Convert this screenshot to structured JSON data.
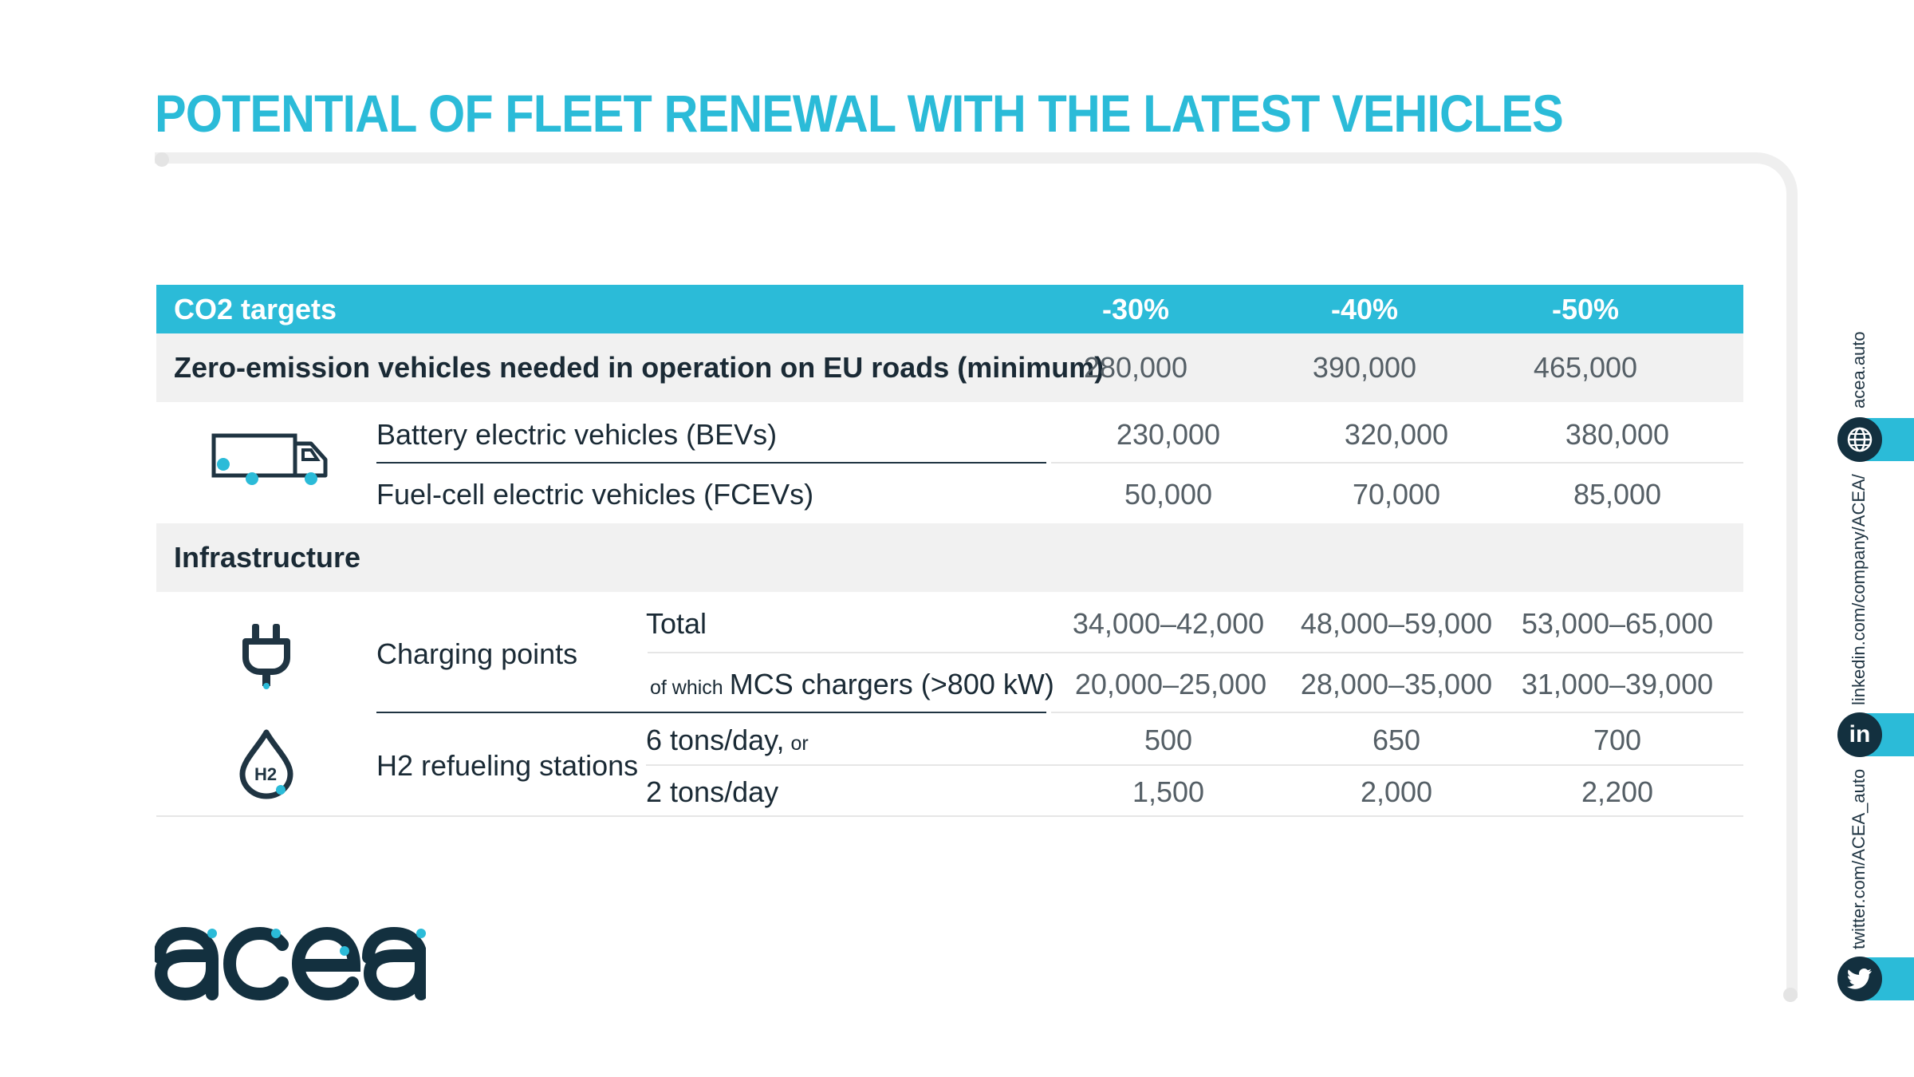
{
  "title": "POTENTIAL OF FLEET RENEWAL WITH THE LATEST VEHICLES",
  "colors": {
    "accent": "#2bbbd8",
    "dark": "#1f3442",
    "row_bg": "#f1f1f1"
  },
  "table": {
    "header": {
      "label": "CO2 targets",
      "columns": [
        "-30%",
        "-40%",
        "-50%"
      ]
    },
    "zev": {
      "label": "Zero-emission vehicles needed in operation on EU roads (minimum)",
      "values": [
        "280,000",
        "390,000",
        "465,000"
      ]
    },
    "bev": {
      "label": "Battery electric vehicles (BEVs)",
      "values": [
        "230,000",
        "320,000",
        "380,000"
      ]
    },
    "fcev": {
      "label": "Fuel-cell electric vehicles (FCEVs)",
      "values": [
        "50,000",
        "70,000",
        "85,000"
      ]
    },
    "infrastructure": {
      "label": "Infrastructure"
    },
    "charging": {
      "label": "Charging points",
      "total": {
        "label": "Total",
        "values": [
          "34,000–42,000",
          "48,000–59,000",
          "53,000–65,000"
        ]
      },
      "mcs": {
        "prefix": "of which",
        "label": "MCS chargers (>800 kW)",
        "values": [
          "20,000–25,000",
          "28,000–35,000",
          "31,000–39,000"
        ]
      }
    },
    "h2": {
      "label": "H2 refueling stations",
      "six": {
        "label": "6 tons/day,",
        "suffix": "or",
        "values": [
          "500",
          "650",
          "700"
        ]
      },
      "two": {
        "label": "2 tons/day",
        "values": [
          "1,500",
          "2,000",
          "2,200"
        ]
      }
    }
  },
  "icons": {
    "truck": "truck-icon",
    "plug": "plug-icon",
    "h2": "h2-drop-icon",
    "h2_text": "H2"
  },
  "logo": "acea",
  "social": {
    "web": {
      "text": "acea.auto",
      "icon": "globe-icon"
    },
    "linkedin": {
      "text": "linkedin.com/company/ACEA/",
      "icon": "linkedin-icon",
      "glyph": "in"
    },
    "twitter": {
      "text": "twitter.com/ACEA_auto",
      "icon": "twitter-icon"
    }
  }
}
